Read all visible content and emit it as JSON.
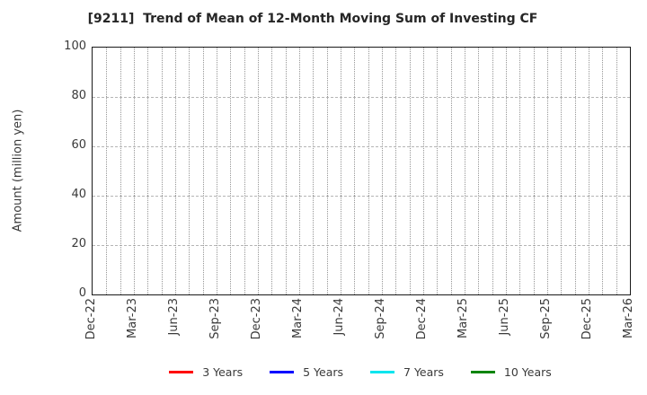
{
  "header": {
    "title": "[9211]  Trend of Mean of 12-Month Moving Sum of Investing CF"
  },
  "chart_data": {
    "type": "line",
    "title": "[9211]  Trend of Mean of 12-Month Moving Sum of Investing CF",
    "xlabel": "",
    "ylabel": "Amount (million yen)",
    "ylim": [
      0,
      100
    ],
    "yticks": [
      0,
      20,
      40,
      60,
      80,
      100
    ],
    "x_tick_labels": [
      "Dec-22",
      "Mar-23",
      "Jun-23",
      "Sep-23",
      "Dec-23",
      "Mar-24",
      "Jun-24",
      "Sep-24",
      "Dec-24",
      "Mar-25",
      "Jun-25",
      "Sep-25",
      "Dec-25",
      "Mar-26"
    ],
    "x_months_per_tick": 3,
    "x_total_month_intervals": 39,
    "grid": "dotted, horizontal at y-ticks and vertical at every month",
    "legend_position": "bottom-center",
    "series": [
      {
        "name": "3 Years",
        "color": "#ff0000",
        "x": [],
        "values": []
      },
      {
        "name": "5 Years",
        "color": "#0000ff",
        "x": [],
        "values": []
      },
      {
        "name": "7 Years",
        "color": "#00e5ee",
        "x": [],
        "values": []
      },
      {
        "name": "10 Years",
        "color": "#0a850a",
        "x": [],
        "values": []
      }
    ],
    "note_visible_data": "no data lines are drawn inside the axes; plot area is empty grid"
  },
  "colors": {
    "background": "#ffffff",
    "axis_border": "#1a1a1a",
    "grid_vertical": "#969696",
    "grid_horizontal": "#b5b5b5",
    "text": "#3a3a3a",
    "title_text": "#262626"
  }
}
